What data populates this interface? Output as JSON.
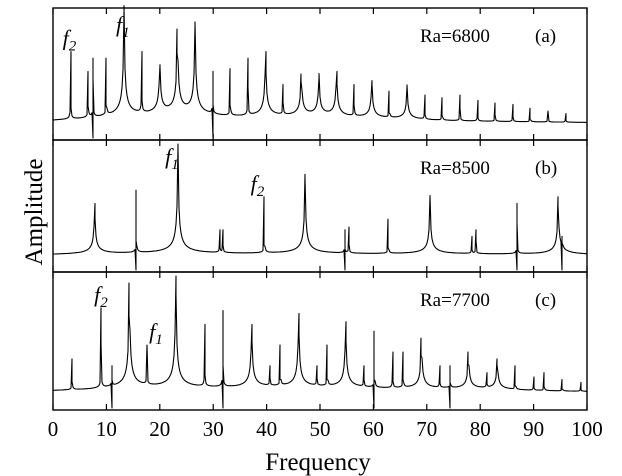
{
  "chart_data": [
    {
      "type": "line",
      "panel": "(a)",
      "annotation": "Ra=6800",
      "peak_labels": [
        {
          "base": "f",
          "sub": "2",
          "x": 3.3
        },
        {
          "base": "f",
          "sub": "1",
          "x": 13.3
        }
      ],
      "peaks": [
        {
          "x": 3.3,
          "h": 0.55,
          "k": "s"
        },
        {
          "x": 6.6,
          "h": 0.4,
          "k": "s"
        },
        {
          "x": 7.5,
          "h": 0.5,
          "k": "d"
        },
        {
          "x": 10.0,
          "h": 0.5,
          "k": "s"
        },
        {
          "x": 13.3,
          "h": 0.88,
          "k": "c"
        },
        {
          "x": 16.6,
          "h": 0.55,
          "k": "s"
        },
        {
          "x": 20.0,
          "h": 0.45,
          "k": "c"
        },
        {
          "x": 23.3,
          "h": 0.72,
          "k": "c"
        },
        {
          "x": 26.6,
          "h": 0.75,
          "k": "c"
        },
        {
          "x": 29.9,
          "h": 0.4,
          "k": "d"
        },
        {
          "x": 33.2,
          "h": 0.42,
          "k": "s"
        },
        {
          "x": 36.5,
          "h": 0.5,
          "k": "s"
        },
        {
          "x": 39.8,
          "h": 0.55,
          "k": "c"
        },
        {
          "x": 43.1,
          "h": 0.3,
          "k": "s"
        },
        {
          "x": 46.5,
          "h": 0.38,
          "k": "c"
        },
        {
          "x": 49.8,
          "h": 0.35,
          "k": "c"
        },
        {
          "x": 53.1,
          "h": 0.4,
          "k": "c"
        },
        {
          "x": 56.4,
          "h": 0.3,
          "k": "s"
        },
        {
          "x": 59.7,
          "h": 0.33,
          "k": "c"
        },
        {
          "x": 63.0,
          "h": 0.25,
          "k": "s"
        },
        {
          "x": 66.3,
          "h": 0.28,
          "k": "c"
        },
        {
          "x": 69.6,
          "h": 0.22,
          "k": "s"
        },
        {
          "x": 72.9,
          "h": 0.2,
          "k": "s"
        },
        {
          "x": 76.2,
          "h": 0.22,
          "k": "s"
        },
        {
          "x": 79.5,
          "h": 0.18,
          "k": "s"
        },
        {
          "x": 82.8,
          "h": 0.16,
          "k": "s"
        },
        {
          "x": 86.1,
          "h": 0.15,
          "k": "s"
        },
        {
          "x": 89.4,
          "h": 0.12,
          "k": "s"
        },
        {
          "x": 92.7,
          "h": 0.1,
          "k": "s"
        },
        {
          "x": 96.0,
          "h": 0.08,
          "k": "s"
        }
      ]
    },
    {
      "type": "line",
      "panel": "(b)",
      "annotation": "Ra=8500",
      "peak_labels": [
        {
          "base": "f",
          "sub": "1",
          "x": 22.5
        },
        {
          "base": "f",
          "sub": "2",
          "x": 38.5
        }
      ],
      "peaks": [
        {
          "x": 7.8,
          "h": 0.4,
          "k": "c"
        },
        {
          "x": 15.6,
          "h": 0.5,
          "k": "d"
        },
        {
          "x": 23.4,
          "h": 0.85,
          "k": "c"
        },
        {
          "x": 31.2,
          "h": 0.2,
          "k": "s"
        },
        {
          "x": 31.8,
          "h": 0.2,
          "k": "s"
        },
        {
          "x": 39.6,
          "h": 0.45,
          "k": "s"
        },
        {
          "x": 47.2,
          "h": 0.62,
          "k": "c"
        },
        {
          "x": 54.6,
          "h": 0.2,
          "k": "d"
        },
        {
          "x": 55.4,
          "h": 0.22,
          "k": "s"
        },
        {
          "x": 62.8,
          "h": 0.28,
          "k": "s"
        },
        {
          "x": 70.6,
          "h": 0.45,
          "k": "c"
        },
        {
          "x": 78.4,
          "h": 0.15,
          "k": "s"
        },
        {
          "x": 79.2,
          "h": 0.2,
          "k": "s"
        },
        {
          "x": 86.9,
          "h": 0.4,
          "k": "d"
        },
        {
          "x": 94.6,
          "h": 0.45,
          "k": "c"
        },
        {
          "x": 95.4,
          "h": 0.15,
          "k": "d"
        }
      ]
    },
    {
      "type": "line",
      "panel": "(c)",
      "annotation": "Ra=7700",
      "peak_labels": [
        {
          "base": "f",
          "sub": "2",
          "x": 9.2
        },
        {
          "base": "f",
          "sub": "1",
          "x": 19.5
        }
      ],
      "peaks": [
        {
          "x": 3.6,
          "h": 0.25,
          "k": "s"
        },
        {
          "x": 9.0,
          "h": 0.62,
          "k": "s"
        },
        {
          "x": 11.0,
          "h": 0.2,
          "k": "d"
        },
        {
          "x": 14.3,
          "h": 0.8,
          "k": "c"
        },
        {
          "x": 17.6,
          "h": 0.35,
          "k": "s"
        },
        {
          "x": 23.0,
          "h": 0.85,
          "k": "c"
        },
        {
          "x": 28.4,
          "h": 0.5,
          "k": "s"
        },
        {
          "x": 31.8,
          "h": 0.6,
          "k": "d"
        },
        {
          "x": 37.2,
          "h": 0.5,
          "k": "c"
        },
        {
          "x": 40.6,
          "h": 0.2,
          "k": "s"
        },
        {
          "x": 42.6,
          "h": 0.35,
          "k": "s"
        },
        {
          "x": 46.0,
          "h": 0.58,
          "k": "c"
        },
        {
          "x": 49.4,
          "h": 0.2,
          "k": "s"
        },
        {
          "x": 51.4,
          "h": 0.35,
          "k": "s"
        },
        {
          "x": 54.8,
          "h": 0.52,
          "k": "c"
        },
        {
          "x": 58.2,
          "h": 0.2,
          "k": "s"
        },
        {
          "x": 60.2,
          "h": 0.45,
          "k": "d"
        },
        {
          "x": 63.6,
          "h": 0.3,
          "k": "s"
        },
        {
          "x": 65.6,
          "h": 0.3,
          "k": "s"
        },
        {
          "x": 69.0,
          "h": 0.4,
          "k": "c"
        },
        {
          "x": 72.4,
          "h": 0.2,
          "k": "s"
        },
        {
          "x": 74.4,
          "h": 0.2,
          "k": "d"
        },
        {
          "x": 77.8,
          "h": 0.3,
          "k": "c"
        },
        {
          "x": 81.2,
          "h": 0.15,
          "k": "s"
        },
        {
          "x": 83.2,
          "h": 0.25,
          "k": "c"
        },
        {
          "x": 86.6,
          "h": 0.2,
          "k": "s"
        },
        {
          "x": 90.0,
          "h": 0.12,
          "k": "s"
        },
        {
          "x": 92.0,
          "h": 0.15,
          "k": "s"
        },
        {
          "x": 95.4,
          "h": 0.1,
          "k": "s"
        },
        {
          "x": 98.8,
          "h": 0.08,
          "k": "s"
        }
      ]
    }
  ],
  "axes": {
    "xlabel": "Frequency",
    "ylabel": "Amplitude",
    "xlim": [
      0,
      100
    ],
    "xticks": [
      0,
      10,
      20,
      30,
      40,
      50,
      60,
      70,
      80,
      90,
      100
    ]
  }
}
